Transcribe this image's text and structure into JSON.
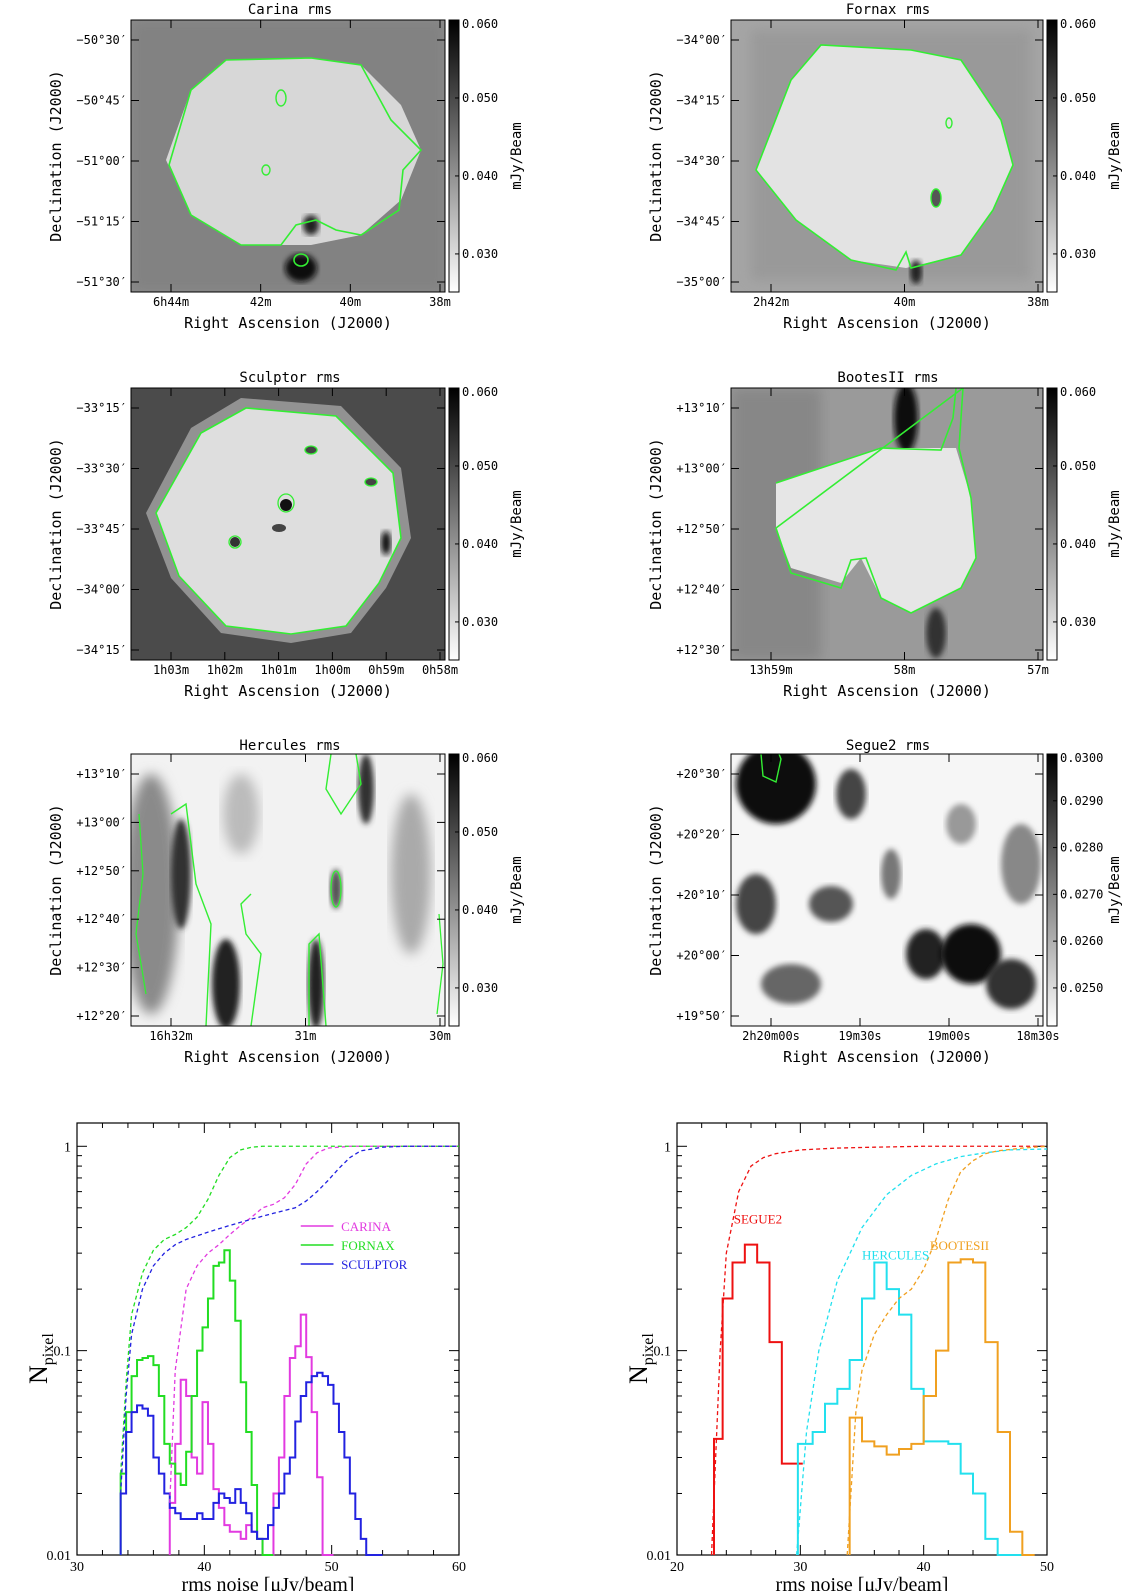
{
  "maps": [
    {
      "title": "Carina rms",
      "xlabel": "Right Ascension (J2000)",
      "ylabel": "Declination (J2000)",
      "cbar_label": "mJy/Beam",
      "yticks": [
        "−50°30′",
        "−50°45′",
        "−51°00′",
        "−51°15′",
        "−51°30′"
      ],
      "xticks": [
        "6h44m",
        "42m",
        "40m",
        "38m"
      ],
      "cbar_ticks": [
        "0.060",
        "0.050",
        "0.040",
        "0.030"
      ]
    },
    {
      "title": "Fornax rms",
      "xlabel": "Right Ascension (J2000)",
      "ylabel": "Declination (J2000)",
      "cbar_label": "mJy/Beam",
      "yticks": [
        "−34°00′",
        "−34°15′",
        "−34°30′",
        "−34°45′",
        "−35°00′"
      ],
      "xticks": [
        "2h42m",
        "40m",
        "38m"
      ],
      "cbar_ticks": [
        "0.060",
        "0.050",
        "0.040",
        "0.030"
      ]
    },
    {
      "title": "Sculptor rms",
      "xlabel": "Right Ascension (J2000)",
      "ylabel": "Declination (J2000)",
      "cbar_label": "mJy/Beam",
      "yticks": [
        "−33°15′",
        "−33°30′",
        "−33°45′",
        "−34°00′",
        "−34°15′"
      ],
      "xticks": [
        "1h03m",
        "1h02m",
        "1h01m",
        "1h00m",
        "0h59m",
        "0h58m"
      ],
      "cbar_ticks": [
        "0.060",
        "0.050",
        "0.040",
        "0.030"
      ]
    },
    {
      "title": "BootesII rms",
      "xlabel": "Right Ascension (J2000)",
      "ylabel": "Declination (J2000)",
      "cbar_label": "mJy/Beam",
      "yticks": [
        "+13°10′",
        "+13°00′",
        "+12°50′",
        "+12°40′",
        "+12°30′"
      ],
      "xticks": [
        "13h59m",
        "58m",
        "57m"
      ],
      "cbar_ticks": [
        "0.060",
        "0.050",
        "0.040",
        "0.030"
      ]
    },
    {
      "title": "Hercules rms",
      "xlabel": "Right Ascension (J2000)",
      "ylabel": "Declination (J2000)",
      "cbar_label": "mJy/Beam",
      "yticks": [
        "+13°10′",
        "+13°00′",
        "+12°50′",
        "+12°40′",
        "+12°30′",
        "+12°20′"
      ],
      "xticks": [
        "16h32m",
        "31m",
        "30m"
      ],
      "cbar_ticks": [
        "0.060",
        "0.050",
        "0.040",
        "0.030"
      ]
    },
    {
      "title": "Segue2 rms",
      "xlabel": "Right Ascension (J2000)",
      "ylabel": "Declination (J2000)",
      "cbar_label": "mJy/Beam",
      "yticks": [
        "+20°30′",
        "+20°20′",
        "+20°10′",
        "+20°00′",
        "+19°50′"
      ],
      "xticks": [
        "2h20m00s",
        "19m30s",
        "19m00s",
        "18m30s"
      ],
      "cbar_ticks": [
        "0.0300",
        "0.0290",
        "0.0280",
        "0.0270",
        "0.0260",
        "0.0250"
      ]
    }
  ],
  "chart_data": [
    {
      "type": "line",
      "xlabel": "rms noise [μJy/beam]",
      "ylabel": "N",
      "ylabel_sub": "pixel",
      "xlim": [
        30,
        65
      ],
      "ylim": [
        0.01,
        1.3
      ],
      "yscale": "log",
      "xticks": [
        "30",
        "40",
        "50",
        "60"
      ],
      "yticks": [
        "0.01",
        "0.1",
        "1"
      ],
      "legend_position": "right-middle",
      "series": [
        {
          "name": "CARINA",
          "color": "#e23ae0",
          "style": "step",
          "x": [
            38.5,
            39,
            39.5,
            40,
            40.5,
            41,
            41.5,
            42,
            42.5,
            43,
            43.5,
            44,
            44.5,
            45,
            45.5,
            46,
            46.5,
            47,
            47.5,
            48,
            48.5,
            49,
            49.5,
            50,
            50.5,
            51,
            51.5,
            52,
            52.5,
            53
          ],
          "y": [
            0.018,
            0.035,
            0.072,
            0.06,
            0.03,
            0.025,
            0.056,
            0.035,
            0.021,
            0.017,
            0.014,
            0.013,
            0.013,
            0.012,
            0.014,
            0.013,
            0.012,
            0.01,
            0.01,
            0.02,
            0.03,
            0.06,
            0.092,
            0.105,
            0.15,
            0.093,
            0.05,
            0.024,
            0.01,
            0.01
          ]
        },
        {
          "name": "FORNAX",
          "color": "#22dd22",
          "style": "step",
          "x": [
            34,
            34.5,
            35,
            35.5,
            36,
            36.5,
            37,
            37.5,
            38,
            38.5,
            39,
            39.5,
            40,
            40.5,
            41,
            41.5,
            42,
            42.5,
            43,
            43.5,
            44,
            44.5,
            45,
            45.5,
            46,
            46.5,
            47,
            47.5
          ],
          "y": [
            0.025,
            0.05,
            0.075,
            0.09,
            0.092,
            0.094,
            0.085,
            0.06,
            0.035,
            0.028,
            0.025,
            0.022,
            0.032,
            0.06,
            0.1,
            0.13,
            0.18,
            0.26,
            0.27,
            0.31,
            0.22,
            0.14,
            0.07,
            0.04,
            0.022,
            0.012,
            0.01,
            0.01
          ]
        },
        {
          "name": "SCULPTOR",
          "color": "#2222e0",
          "style": "step",
          "x": [
            34,
            34.5,
            35,
            35.5,
            36,
            36.5,
            37,
            37.5,
            38,
            38.5,
            39,
            39.5,
            40,
            40.5,
            41,
            41.5,
            42,
            42.5,
            43,
            43.5,
            44,
            44.5,
            45,
            45.5,
            46,
            46.5,
            47,
            47.5,
            48,
            48.5,
            49,
            49.5,
            50,
            50.5,
            51,
            51.5,
            52,
            52.5,
            53,
            53.5,
            54,
            54.5,
            55,
            55.5,
            56,
            56.5,
            57,
            57.5
          ],
          "y": [
            0.02,
            0.04,
            0.05,
            0.054,
            0.052,
            0.048,
            0.03,
            0.025,
            0.02,
            0.017,
            0.016,
            0.015,
            0.015,
            0.015,
            0.016,
            0.015,
            0.015,
            0.018,
            0.02,
            0.019,
            0.018,
            0.021,
            0.018,
            0.016,
            0.013,
            0.012,
            0.012,
            0.014,
            0.017,
            0.02,
            0.025,
            0.03,
            0.045,
            0.06,
            0.07,
            0.075,
            0.078,
            0.075,
            0.068,
            0.055,
            0.04,
            0.03,
            0.02,
            0.015,
            0.012,
            0.01,
            0.01,
            0.01
          ]
        },
        {
          "name": "",
          "color": "#e23ae0",
          "style": "dashed",
          "x": [
            38.5,
            39,
            40,
            41,
            42,
            43,
            44,
            45,
            46,
            47,
            48,
            49,
            50,
            51,
            52,
            53,
            55,
            58,
            60,
            65
          ],
          "y": [
            0.018,
            0.08,
            0.2,
            0.26,
            0.3,
            0.33,
            0.37,
            0.41,
            0.45,
            0.5,
            0.52,
            0.56,
            0.65,
            0.82,
            0.93,
            0.98,
            1.0,
            1.0,
            1.0,
            1.0
          ]
        },
        {
          "name": "",
          "color": "#22dd22",
          "style": "dashed",
          "x": [
            34,
            34.5,
            35,
            36,
            37,
            38,
            39,
            40,
            41,
            42,
            43,
            44,
            45,
            46,
            47,
            48,
            50,
            55,
            65
          ],
          "y": [
            0.025,
            0.07,
            0.15,
            0.24,
            0.31,
            0.35,
            0.37,
            0.4,
            0.45,
            0.55,
            0.72,
            0.88,
            0.96,
            0.99,
            1.0,
            1.0,
            1.0,
            1.0,
            1.0
          ]
        },
        {
          "name": "",
          "color": "#2222e0",
          "style": "dashed",
          "x": [
            34,
            34.5,
            35,
            36,
            37,
            38,
            39,
            40,
            42,
            44,
            46,
            48,
            50,
            51,
            52,
            53,
            54,
            55,
            56,
            58,
            60,
            65
          ],
          "y": [
            0.02,
            0.06,
            0.12,
            0.2,
            0.26,
            0.3,
            0.33,
            0.35,
            0.38,
            0.41,
            0.44,
            0.47,
            0.5,
            0.54,
            0.6,
            0.68,
            0.78,
            0.88,
            0.95,
            0.99,
            1.0,
            1.0
          ]
        }
      ]
    },
    {
      "type": "line",
      "xlabel": "rms noise [μJy/beam]",
      "ylabel": "N",
      "ylabel_sub": "pixel",
      "xlim": [
        20,
        50
      ],
      "ylim": [
        0.01,
        1.3
      ],
      "yscale": "log",
      "xticks": [
        "20",
        "30",
        "40",
        "50"
      ],
      "yticks": [
        "0.01",
        "0.1",
        "1"
      ],
      "legend_position": "inline-labels",
      "series": [
        {
          "name": "SEGUE2",
          "color": "#ee1111",
          "style": "step",
          "x": [
            23,
            23.7,
            24.5,
            25.5,
            26.5,
            27.5,
            28.5,
            29.5
          ],
          "y": [
            0.037,
            0.18,
            0.27,
            0.33,
            0.27,
            0.11,
            0.028,
            0.028
          ]
        },
        {
          "name": "HERCULES",
          "color": "#22e0ee",
          "style": "step",
          "x": [
            29.8,
            31,
            32,
            33,
            34,
            35,
            36,
            37,
            38,
            39,
            40,
            41,
            42,
            43,
            44,
            45,
            46,
            47
          ],
          "y": [
            0.035,
            0.04,
            0.055,
            0.065,
            0.09,
            0.18,
            0.27,
            0.2,
            0.15,
            0.065,
            0.036,
            0.036,
            0.035,
            0.025,
            0.02,
            0.012,
            0.01,
            0.01
          ]
        },
        {
          "name": "BOOTESII",
          "color": "#f0a020",
          "style": "step",
          "x": [
            34,
            35,
            36,
            37,
            38,
            39,
            40,
            41,
            42,
            43,
            44,
            45,
            46,
            47,
            48
          ],
          "y": [
            0.047,
            0.036,
            0.034,
            0.031,
            0.033,
            0.035,
            0.06,
            0.1,
            0.27,
            0.28,
            0.27,
            0.11,
            0.04,
            0.013,
            0.01
          ]
        },
        {
          "name": "",
          "color": "#ee1111",
          "style": "dashed",
          "x": [
            22.8,
            23.5,
            24,
            25,
            26,
            27,
            28,
            30,
            33,
            36,
            40,
            45,
            50
          ],
          "y": [
            0.01,
            0.1,
            0.3,
            0.6,
            0.8,
            0.88,
            0.92,
            0.96,
            0.98,
            0.99,
            1.0,
            1.0,
            1.0
          ]
        },
        {
          "name": "",
          "color": "#22e0ee",
          "style": "dashed",
          "x": [
            29.7,
            30.5,
            31.5,
            33,
            35,
            37,
            39,
            41,
            43,
            45,
            47,
            50
          ],
          "y": [
            0.01,
            0.04,
            0.1,
            0.22,
            0.4,
            0.58,
            0.72,
            0.82,
            0.89,
            0.93,
            0.96,
            0.97
          ]
        },
        {
          "name": "",
          "color": "#f0a020",
          "style": "dashed",
          "x": [
            33.8,
            34.5,
            35,
            36,
            37,
            38,
            39,
            40,
            41,
            42,
            43,
            44,
            45,
            46,
            48,
            50
          ],
          "y": [
            0.01,
            0.05,
            0.08,
            0.12,
            0.15,
            0.18,
            0.2,
            0.25,
            0.35,
            0.55,
            0.75,
            0.85,
            0.92,
            0.95,
            0.98,
            1.0
          ]
        }
      ]
    }
  ]
}
